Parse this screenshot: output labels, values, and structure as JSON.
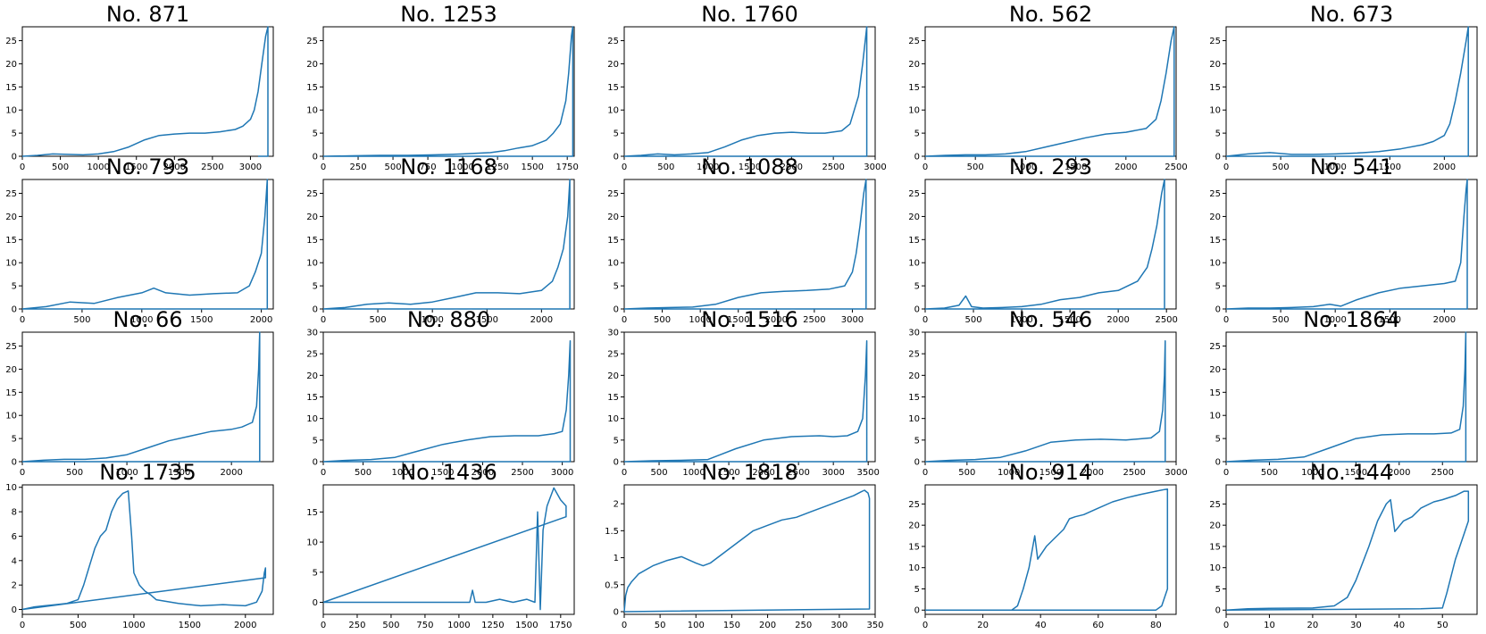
{
  "figure": {
    "line_color": "#1f77b4",
    "background": "#ffffff",
    "axes_color": "#000000"
  },
  "chart_data": [
    {
      "type": "line",
      "title": "No. 871",
      "xlim": [
        0,
        3300
      ],
      "ylim": [
        0,
        28
      ],
      "xticks": [
        0,
        500,
        1000,
        1500,
        2000,
        2500,
        3000
      ],
      "yticks": [
        0,
        5,
        10,
        15,
        20,
        25
      ],
      "x": [
        0,
        200,
        400,
        600,
        800,
        1000,
        1200,
        1400,
        1600,
        1800,
        2000,
        2200,
        2400,
        2600,
        2800,
        2900,
        3000,
        3050,
        3100,
        3150,
        3200,
        3230,
        3230,
        3230,
        3100
      ],
      "y": [
        0,
        0.2,
        0.5,
        0.4,
        0.3,
        0.5,
        1,
        2,
        3.5,
        4.5,
        4.8,
        5,
        5,
        5.3,
        5.8,
        6.5,
        8,
        10,
        14,
        20,
        26,
        28,
        0,
        0,
        0
      ]
    },
    {
      "type": "line",
      "title": "No. 1253",
      "xlim": [
        0,
        1800
      ],
      "ylim": [
        0,
        28
      ],
      "xticks": [
        0,
        250,
        500,
        750,
        1000,
        1250,
        1500,
        1750
      ],
      "yticks": [
        0,
        5,
        10,
        15,
        20,
        25
      ],
      "x": [
        0,
        200,
        400,
        600,
        800,
        1000,
        1200,
        1300,
        1400,
        1500,
        1600,
        1650,
        1700,
        1740,
        1760,
        1780,
        1790,
        1790,
        0
      ],
      "y": [
        0,
        0.1,
        0.2,
        0.2,
        0.3,
        0.5,
        0.8,
        1.2,
        1.8,
        2.3,
        3.5,
        5,
        7,
        12,
        18,
        26,
        28,
        0,
        0
      ]
    },
    {
      "type": "line",
      "title": "No. 1760",
      "xlim": [
        0,
        3000
      ],
      "ylim": [
        0,
        28
      ],
      "xticks": [
        0,
        500,
        1000,
        1500,
        2000,
        2500,
        3000
      ],
      "yticks": [
        0,
        5,
        10,
        15,
        20,
        25
      ],
      "x": [
        0,
        200,
        400,
        600,
        800,
        1000,
        1200,
        1400,
        1600,
        1800,
        2000,
        2200,
        2400,
        2600,
        2700,
        2800,
        2850,
        2900,
        2900,
        0
      ],
      "y": [
        0,
        0.2,
        0.5,
        0.3,
        0.5,
        0.8,
        2,
        3.5,
        4.5,
        5,
        5.2,
        5,
        5,
        5.5,
        7,
        13,
        20,
        28,
        0,
        0
      ]
    },
    {
      "type": "line",
      "title": "No. 562",
      "xlim": [
        0,
        2500
      ],
      "ylim": [
        0,
        28
      ],
      "xticks": [
        0,
        500,
        1000,
        1500,
        2000,
        2500
      ],
      "yticks": [
        0,
        5,
        10,
        15,
        20,
        25
      ],
      "x": [
        0,
        200,
        400,
        600,
        800,
        1000,
        1200,
        1400,
        1600,
        1800,
        2000,
        2200,
        2300,
        2350,
        2400,
        2450,
        2480,
        2480,
        0
      ],
      "y": [
        0,
        0.2,
        0.3,
        0.3,
        0.5,
        1,
        2,
        3,
        4,
        4.8,
        5.2,
        6,
        8,
        12,
        18,
        25,
        28,
        0,
        0
      ]
    },
    {
      "type": "line",
      "title": "No. 673",
      "xlim": [
        0,
        2300
      ],
      "ylim": [
        0,
        28
      ],
      "xticks": [
        0,
        500,
        1000,
        1500,
        2000
      ],
      "yticks": [
        0,
        5,
        10,
        15,
        20,
        25
      ],
      "x": [
        0,
        200,
        400,
        600,
        800,
        1000,
        1200,
        1400,
        1600,
        1800,
        1900,
        2000,
        2050,
        2100,
        2150,
        2200,
        2220,
        2220,
        0
      ],
      "y": [
        0,
        0.5,
        0.8,
        0.4,
        0.4,
        0.5,
        0.7,
        1,
        1.6,
        2.5,
        3.2,
        4.5,
        7,
        12,
        18,
        25,
        28,
        0,
        0
      ]
    },
    {
      "type": "line",
      "title": "No. 793",
      "xlim": [
        0,
        2100
      ],
      "ylim": [
        0,
        28
      ],
      "xticks": [
        0,
        500,
        1000,
        1500,
        2000
      ],
      "yticks": [
        0,
        5,
        10,
        15,
        20,
        25
      ],
      "x": [
        0,
        200,
        400,
        600,
        800,
        1000,
        1100,
        1200,
        1400,
        1600,
        1800,
        1900,
        1950,
        2000,
        2030,
        2050,
        2050,
        0
      ],
      "y": [
        0,
        0.5,
        1.5,
        1.2,
        2.5,
        3.5,
        4.5,
        3.5,
        3,
        3.3,
        3.5,
        5,
        8,
        12,
        20,
        28,
        0,
        0
      ]
    },
    {
      "type": "line",
      "title": "No. 1168",
      "xlim": [
        0,
        2300
      ],
      "ylim": [
        0,
        28
      ],
      "xticks": [
        0,
        500,
        1000,
        1500,
        2000
      ],
      "yticks": [
        0,
        5,
        10,
        15,
        20,
        25
      ],
      "x": [
        0,
        200,
        400,
        600,
        800,
        1000,
        1200,
        1400,
        1600,
        1800,
        2000,
        2100,
        2150,
        2200,
        2240,
        2260,
        2260,
        0
      ],
      "y": [
        0,
        0.3,
        1,
        1.3,
        1,
        1.5,
        2.5,
        3.5,
        3.5,
        3.3,
        4,
        6,
        9,
        13,
        20,
        28,
        0,
        0
      ]
    },
    {
      "type": "line",
      "title": "No. 1088",
      "xlim": [
        0,
        3300
      ],
      "ylim": [
        0,
        28
      ],
      "xticks": [
        0,
        500,
        1000,
        1500,
        2000,
        2500,
        3000
      ],
      "yticks": [
        0,
        5,
        10,
        15,
        20,
        25
      ],
      "x": [
        0,
        300,
        600,
        900,
        1200,
        1500,
        1800,
        2100,
        2400,
        2700,
        2900,
        3000,
        3050,
        3100,
        3150,
        3180,
        3180,
        0
      ],
      "y": [
        0,
        0.2,
        0.3,
        0.4,
        1,
        2.5,
        3.5,
        3.8,
        4,
        4.3,
        5,
        8,
        12,
        18,
        25,
        28,
        0,
        0
      ]
    },
    {
      "type": "line",
      "title": "No. 293",
      "xlim": [
        0,
        2600
      ],
      "ylim": [
        0,
        28
      ],
      "xticks": [
        0,
        500,
        1000,
        1500,
        2000,
        2500
      ],
      "yticks": [
        0,
        5,
        10,
        15,
        20,
        25
      ],
      "x": [
        0,
        200,
        350,
        420,
        480,
        600,
        800,
        1000,
        1200,
        1400,
        1600,
        1800,
        2000,
        2200,
        2300,
        2350,
        2400,
        2450,
        2480,
        2480,
        0
      ],
      "y": [
        0,
        0.2,
        0.8,
        2.8,
        0.5,
        0.2,
        0.3,
        0.5,
        1,
        2,
        2.5,
        3.5,
        4,
        6,
        9,
        13,
        18,
        25,
        28,
        0,
        0
      ]
    },
    {
      "type": "line",
      "title": "No. 541",
      "xlim": [
        0,
        2300
      ],
      "ylim": [
        0,
        28
      ],
      "xticks": [
        0,
        500,
        1000,
        1500,
        2000
      ],
      "yticks": [
        0,
        5,
        10,
        15,
        20,
        25
      ],
      "x": [
        0,
        200,
        400,
        600,
        800,
        950,
        1050,
        1200,
        1400,
        1600,
        1800,
        2000,
        2100,
        2150,
        2180,
        2200,
        2210,
        2210,
        0
      ],
      "y": [
        0,
        0.2,
        0.2,
        0.3,
        0.5,
        1,
        0.6,
        2,
        3.5,
        4.5,
        5,
        5.5,
        6,
        10,
        20,
        26,
        28,
        0,
        0
      ]
    },
    {
      "type": "line",
      "title": "No. 66",
      "xlim": [
        0,
        2400
      ],
      "ylim": [
        0,
        28
      ],
      "xticks": [
        0,
        500,
        1000,
        1500,
        2000
      ],
      "yticks": [
        0,
        5,
        10,
        15,
        20,
        25
      ],
      "x": [
        0,
        200,
        400,
        600,
        800,
        1000,
        1200,
        1400,
        1600,
        1800,
        2000,
        2100,
        2200,
        2240,
        2260,
        2270,
        2270,
        0
      ],
      "y": [
        0,
        0.3,
        0.5,
        0.5,
        0.8,
        1.5,
        3,
        4.5,
        5.5,
        6.5,
        7,
        7.5,
        8.5,
        12,
        20,
        28,
        0,
        0
      ]
    },
    {
      "type": "line",
      "title": "No. 880",
      "xlim": [
        0,
        3150
      ],
      "ylim": [
        0,
        30
      ],
      "xticks": [
        0,
        500,
        1000,
        1500,
        2000,
        2500,
        3000
      ],
      "yticks": [
        0,
        5,
        10,
        15,
        20,
        25,
        30
      ],
      "x": [
        0,
        300,
        600,
        900,
        1200,
        1500,
        1800,
        2100,
        2400,
        2700,
        2900,
        3000,
        3050,
        3080,
        3100,
        3100,
        0
      ],
      "y": [
        0,
        0.3,
        0.5,
        1,
        2.5,
        4,
        5,
        5.8,
        6,
        6,
        6.5,
        7,
        12,
        20,
        28,
        0,
        0
      ]
    },
    {
      "type": "line",
      "title": "No. 1516",
      "xlim": [
        0,
        3600
      ],
      "ylim": [
        0,
        30
      ],
      "xticks": [
        0,
        500,
        1000,
        1500,
        2000,
        2500,
        3000,
        3500
      ],
      "yticks": [
        0,
        5,
        10,
        15,
        20,
        25,
        30
      ],
      "x": [
        0,
        400,
        800,
        1200,
        1600,
        2000,
        2400,
        2800,
        3000,
        3200,
        3350,
        3420,
        3460,
        3480,
        3480,
        0
      ],
      "y": [
        0,
        0.2,
        0.3,
        0.5,
        3,
        5,
        5.8,
        6,
        5.8,
        6,
        7,
        10,
        20,
        28,
        0,
        0
      ]
    },
    {
      "type": "line",
      "title": "No. 546",
      "xlim": [
        0,
        3000
      ],
      "ylim": [
        0,
        30
      ],
      "xticks": [
        0,
        500,
        1000,
        1500,
        2000,
        2500,
        3000
      ],
      "yticks": [
        0,
        5,
        10,
        15,
        20,
        25,
        30
      ],
      "x": [
        0,
        300,
        600,
        900,
        1200,
        1500,
        1800,
        2100,
        2400,
        2700,
        2800,
        2840,
        2860,
        2870,
        2870,
        0
      ],
      "y": [
        0,
        0.3,
        0.5,
        1,
        2.5,
        4.5,
        5,
        5.2,
        5,
        5.5,
        7,
        12,
        20,
        28,
        0,
        0
      ]
    },
    {
      "type": "line",
      "title": "No. 1864",
      "xlim": [
        0,
        2900
      ],
      "ylim": [
        0,
        28
      ],
      "xticks": [
        0,
        500,
        1000,
        1500,
        2000,
        2500
      ],
      "yticks": [
        0,
        5,
        10,
        15,
        20,
        25
      ],
      "x": [
        0,
        300,
        600,
        900,
        1200,
        1500,
        1800,
        2100,
        2400,
        2600,
        2700,
        2740,
        2760,
        2770,
        2770,
        0
      ],
      "y": [
        0,
        0.3,
        0.5,
        1,
        3,
        5,
        5.8,
        6,
        6,
        6.2,
        7,
        12,
        20,
        28,
        0,
        0
      ]
    },
    {
      "type": "line",
      "title": "No. 1735",
      "xlim": [
        0,
        2250
      ],
      "ylim": [
        -0.4,
        10.2
      ],
      "xticks": [
        0,
        500,
        1000,
        1500,
        2000
      ],
      "yticks": [
        0,
        2,
        4,
        6,
        8,
        10
      ],
      "x": [
        0,
        100,
        200,
        300,
        400,
        500,
        550,
        600,
        650,
        700,
        750,
        800,
        850,
        900,
        950,
        980,
        1000,
        1050,
        1100,
        1150,
        1200,
        1400,
        1500,
        1600,
        1800,
        2000,
        2100,
        2150,
        2170,
        2180,
        2180,
        0
      ],
      "y": [
        0,
        0.2,
        0.3,
        0.4,
        0.5,
        0.8,
        2,
        3.5,
        5,
        6,
        6.5,
        8,
        9,
        9.5,
        9.7,
        6,
        3,
        2,
        1.5,
        1.2,
        0.8,
        0.5,
        0.4,
        0.3,
        0.4,
        0.3,
        0.6,
        1.5,
        3,
        3.4,
        2.6,
        0
      ]
    },
    {
      "type": "line",
      "title": "No. 1436",
      "xlim": [
        0,
        1850
      ],
      "ylim": [
        -2,
        19.5
      ],
      "xticks": [
        0,
        250,
        500,
        750,
        1000,
        1250,
        1500,
        1750
      ],
      "yticks": [
        0,
        5,
        10,
        15
      ],
      "x": [
        0,
        200,
        400,
        600,
        800,
        1000,
        1080,
        1100,
        1120,
        1200,
        1300,
        1400,
        1500,
        1560,
        1580,
        1600,
        1620,
        1650,
        1700,
        1750,
        1790,
        1790,
        0
      ],
      "y": [
        0,
        0,
        0,
        0,
        0,
        0,
        0,
        2,
        0,
        0,
        0.5,
        0,
        0.5,
        0,
        15,
        -1.2,
        12,
        16,
        19,
        17,
        16,
        14.2,
        0
      ]
    },
    {
      "type": "line",
      "title": "No. 1818",
      "xlim": [
        0,
        350
      ],
      "ylim": [
        -0.05,
        2.35
      ],
      "xticks": [
        0,
        50,
        100,
        150,
        200,
        250,
        300,
        350
      ],
      "yticks": [
        0,
        0.5,
        1,
        1.5,
        2
      ],
      "x": [
        0,
        2,
        5,
        10,
        20,
        40,
        60,
        80,
        100,
        110,
        120,
        140,
        160,
        180,
        200,
        220,
        240,
        260,
        280,
        300,
        320,
        330,
        335,
        340,
        342,
        342,
        0
      ],
      "y": [
        0,
        0.3,
        0.45,
        0.55,
        0.7,
        0.85,
        0.95,
        1.02,
        0.9,
        0.85,
        0.9,
        1.1,
        1.3,
        1.5,
        1.6,
        1.7,
        1.75,
        1.85,
        1.95,
        2.05,
        2.15,
        2.22,
        2.25,
        2.2,
        2.1,
        0.05,
        0
      ]
    },
    {
      "type": "line",
      "title": "No. 914",
      "xlim": [
        0,
        87
      ],
      "ylim": [
        -1,
        29.5
      ],
      "xticks": [
        0,
        20,
        40,
        60,
        80
      ],
      "yticks": [
        0,
        5,
        10,
        15,
        20,
        25
      ],
      "x": [
        0,
        20,
        30,
        32,
        34,
        36,
        38,
        39,
        40,
        42,
        45,
        48,
        50,
        52,
        55,
        60,
        65,
        70,
        75,
        80,
        83,
        84,
        84,
        84,
        82,
        80,
        0
      ],
      "y": [
        0,
        0,
        0,
        1,
        5,
        10,
        17.5,
        12,
        13,
        15,
        17,
        19,
        21.5,
        22,
        22.5,
        24,
        25.5,
        26.5,
        27.3,
        28,
        28.4,
        28.5,
        21,
        5,
        1,
        0,
        0
      ]
    },
    {
      "type": "line",
      "title": "No. 144",
      "xlim": [
        0,
        58
      ],
      "ylim": [
        -1,
        29.5
      ],
      "xticks": [
        0,
        10,
        20,
        30,
        40,
        50
      ],
      "yticks": [
        0,
        5,
        10,
        15,
        20,
        25
      ],
      "x": [
        0,
        5,
        10,
        20,
        25,
        28,
        30,
        33,
        35,
        37,
        38,
        39,
        41,
        43,
        45,
        48,
        50,
        53,
        55,
        56,
        56,
        55,
        53,
        51,
        50,
        45,
        0
      ],
      "y": [
        0,
        0.3,
        0.4,
        0.5,
        1,
        3,
        7,
        15,
        21,
        25,
        26,
        18.5,
        21,
        22,
        24,
        25.5,
        26,
        27,
        28,
        28,
        21,
        18,
        12,
        4,
        0.5,
        0.3,
        0
      ]
    }
  ]
}
